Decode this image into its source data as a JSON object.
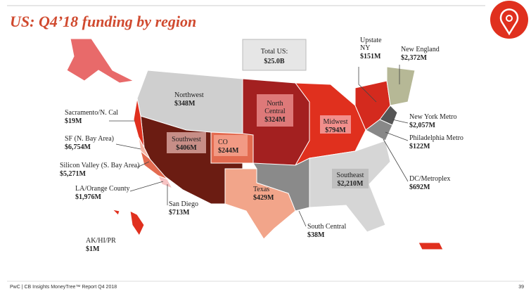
{
  "title": "US: Q4’18 funding by region",
  "total": {
    "label": "Total US:",
    "amount": "$25.0B"
  },
  "regions": [
    {
      "name": "Upstate NY",
      "amount": "$151M"
    },
    {
      "name": "New England",
      "amount": "$2,372M"
    },
    {
      "name": "Northwest",
      "amount": "$348M"
    },
    {
      "name": "North Central",
      "amount": "$324M"
    },
    {
      "name": "Sacramento/N. Cal",
      "amount": "$19M"
    },
    {
      "name": "Midwest",
      "amount": "$794M"
    },
    {
      "name": "New York Metro",
      "amount": "$2,057M"
    },
    {
      "name": "Philadelphia Metro",
      "amount": "$122M"
    },
    {
      "name": "SF (N. Bay Area)",
      "amount": "$6,754M"
    },
    {
      "name": "Southwest",
      "amount": "$406M"
    },
    {
      "name": "CO",
      "amount": "$244M"
    },
    {
      "name": "Silicon Valley (S. Bay Area)",
      "amount": "$5,271M"
    },
    {
      "name": "Southeast",
      "amount": "$2,210M"
    },
    {
      "name": "DC/Metroplex",
      "amount": "$692M"
    },
    {
      "name": "LA/Orange County",
      "amount": "$1,976M"
    },
    {
      "name": "Texas",
      "amount": "$429M"
    },
    {
      "name": "San Diego",
      "amount": "$713M"
    },
    {
      "name": "South Central",
      "amount": "$38M"
    },
    {
      "name": "AK/HI/PR",
      "amount": "$1M"
    }
  ],
  "footer": {
    "source": "PwC | CB Insights MoneyTree™ Report Q4 2018",
    "page": "39"
  }
}
